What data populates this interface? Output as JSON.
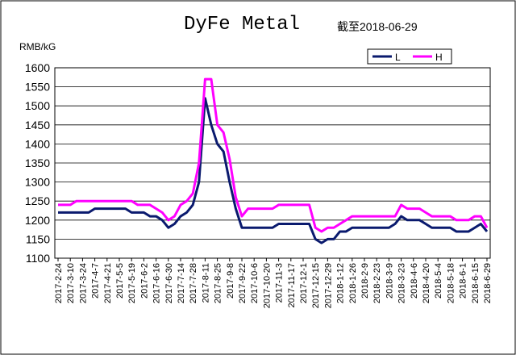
{
  "chart_data": {
    "type": "line",
    "title": "DyFe Metal",
    "subtitle": "截至2018-06-29",
    "y_label": "RMB/kG",
    "categories": [
      "2017-2-24",
      null,
      "2017-3-10",
      null,
      "2017-3-24",
      null,
      "2017-4-7",
      null,
      "2017-4-21",
      null,
      "2017-5-5",
      null,
      "2017-5-19",
      null,
      "2017-6-2",
      null,
      "2017-6-16",
      null,
      "2017-6-30",
      null,
      "2017-7-14",
      null,
      "2017-7-28",
      null,
      "2017-8-11",
      null,
      "2017-8-25",
      null,
      "2017-9-8",
      null,
      "2017-9-22",
      null,
      "2017-10-6",
      null,
      "2017-10-20",
      null,
      "2017-11-3",
      null,
      "2017-11-17",
      null,
      "2017-12-1",
      null,
      "2017-12-15",
      null,
      "2017-12-29",
      null,
      "2018-1-12",
      null,
      "2018-1-26",
      null,
      "2018-2-9",
      null,
      "2018-2-23",
      null,
      "2018-3-9",
      null,
      "2018-3-23",
      null,
      "2018-4-6",
      null,
      "2018-4-20",
      null,
      "2018-5-4",
      null,
      "2018-5-18",
      null,
      "2018-6-1",
      null,
      "2018-6-15",
      null,
      "2018-6-29"
    ],
    "series": [
      {
        "name": "L",
        "color": "#0a1a6e",
        "values": [
          1220,
          1220,
          1220,
          1220,
          1220,
          1220,
          1230,
          1230,
          1230,
          1230,
          1230,
          1230,
          1220,
          1220,
          1220,
          1210,
          1210,
          1200,
          1180,
          1190,
          1210,
          1220,
          1240,
          1300,
          1520,
          1450,
          1400,
          1380,
          1300,
          1230,
          1180,
          1180,
          1180,
          1180,
          1180,
          1180,
          1190,
          1190,
          1190,
          1190,
          1190,
          1190,
          1150,
          1140,
          1150,
          1150,
          1170,
          1170,
          1180,
          1180,
          1180,
          1180,
          1180,
          1180,
          1180,
          1190,
          1210,
          1200,
          1200,
          1200,
          1190,
          1180,
          1180,
          1180,
          1180,
          1170,
          1170,
          1170,
          1180,
          1190,
          1170
        ]
      },
      {
        "name": "H",
        "color": "#ff00ff",
        "values": [
          1240,
          1240,
          1240,
          1250,
          1250,
          1250,
          1250,
          1250,
          1250,
          1250,
          1250,
          1250,
          1250,
          1240,
          1240,
          1240,
          1230,
          1220,
          1200,
          1210,
          1240,
          1250,
          1270,
          1350,
          1570,
          1570,
          1450,
          1430,
          1360,
          1260,
          1210,
          1230,
          1230,
          1230,
          1230,
          1230,
          1240,
          1240,
          1240,
          1240,
          1240,
          1240,
          1180,
          1170,
          1180,
          1180,
          1190,
          1200,
          1210,
          1210,
          1210,
          1210,
          1210,
          1210,
          1210,
          1210,
          1240,
          1230,
          1230,
          1230,
          1220,
          1210,
          1210,
          1210,
          1210,
          1200,
          1200,
          1200,
          1210,
          1210,
          1180
        ]
      }
    ],
    "ylim": [
      1100,
      1600
    ],
    "yticks": [
      1100,
      1150,
      1200,
      1250,
      1300,
      1350,
      1400,
      1450,
      1500,
      1550,
      1600
    ],
    "grid": true,
    "legend": "top-right"
  }
}
